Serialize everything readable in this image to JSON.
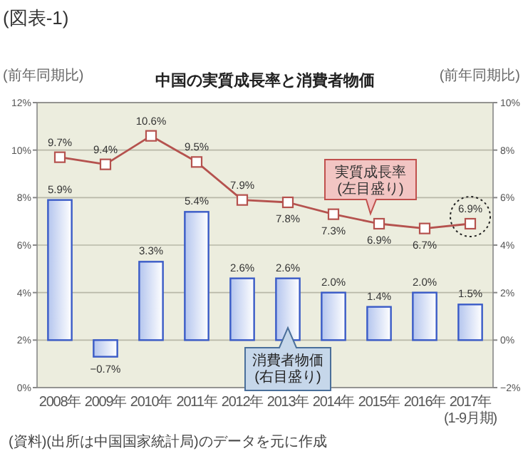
{
  "chart_data": {
    "type": "bar",
    "title": "中国の実質成長率と消費者物価",
    "subtitle": "(図表-1)",
    "ylabel": "(前年同期比)",
    "y2label": "(前年同期比)",
    "categories": [
      "2008年",
      "2009年",
      "2010年",
      "2011年",
      "2012年",
      "2013年",
      "2014年",
      "2015年",
      "2016年",
      "2017年\n(1-9月期)"
    ],
    "series": [
      {
        "axis": "y2",
        "color": "#3a5bc7",
        "values": [
          5.9,
          -0.7,
          3.3,
          5.4,
          2.6,
          2.6,
          2.0,
          1.4,
          2.0,
          1.5
        ],
        "value_labels": [
          "5.9%",
          "−0.7%",
          "3.3%",
          "5.4%",
          "2.6%",
          "2.6%",
          "2.0%",
          "1.4%",
          "2.0%",
          "1.5%"
        ]
      },
      {
        "type": "line",
        "color": "#b5524e",
        "marker": "square",
        "values": [
          9.7,
          9.4,
          10.6,
          9.5,
          7.9,
          7.8,
          7.3,
          6.9,
          6.7,
          6.9
        ],
        "value_labels": [
          "9.7%",
          "9.4%",
          "10.6%",
          "9.5%",
          "7.9%",
          "7.8%",
          "7.3%",
          "6.9%",
          "6.7%",
          "6.9%"
        ]
      }
    ],
    "ylim": [
      0,
      12
    ],
    "yticks": [
      {
        "value": 0,
        "label": "0%"
      },
      {
        "value": 2,
        "label": "2%"
      },
      {
        "value": 4,
        "label": "4%"
      },
      {
        "value": 6,
        "label": "6%"
      },
      {
        "value": 8,
        "label": "8%"
      },
      {
        "value": 10,
        "label": "10%"
      },
      {
        "value": 12,
        "label": "12%"
      }
    ],
    "y2lim": [
      -2,
      10
    ],
    "y2ticks": [
      {
        "value": -2,
        "label": "−2%"
      },
      {
        "value": 0,
        "label": "0%"
      },
      {
        "value": 2,
        "label": "2%"
      },
      {
        "value": 4,
        "label": "4%"
      },
      {
        "value": 6,
        "label": "6%"
      },
      {
        "value": 8,
        "label": "8%"
      },
      {
        "value": 10,
        "label": "10%"
      }
    ],
    "grid": "y",
    "annotations": [
      "実質成長率\n(左目盛り)",
      "消費者物価\n(右目盛り)",
      "(資料)(出所は中国国家統計局)のデータを元に作成"
    ]
  }
}
